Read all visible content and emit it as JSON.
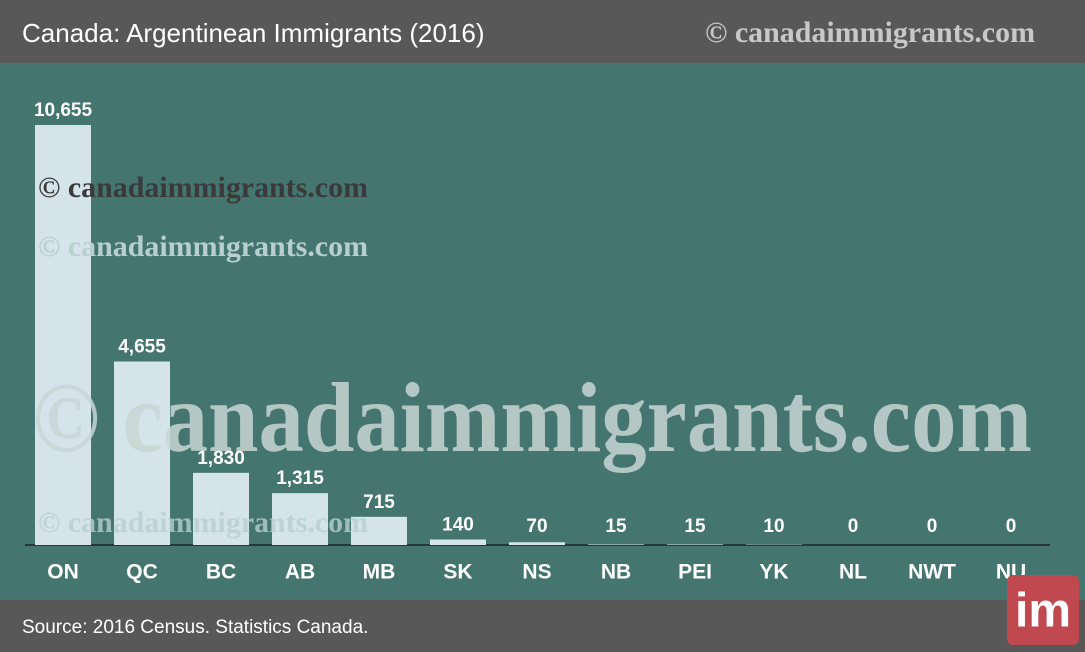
{
  "chart_data": {
    "type": "bar",
    "title": "Canada: Argentinean Immigrants (2016)",
    "watermark": "© canadaimmigrants.com",
    "source": "Source: 2016 Census. Statistics Canada.",
    "logo": "im",
    "categories": [
      "ON",
      "QC",
      "BC",
      "AB",
      "MB",
      "SK",
      "NS",
      "NB",
      "PEI",
      "YK",
      "NL",
      "NWT",
      "NU"
    ],
    "values": [
      10655,
      4655,
      1830,
      1315,
      715,
      140,
      70,
      15,
      15,
      10,
      0,
      0,
      0
    ],
    "value_labels": [
      "10,655",
      "4,655",
      "1,830",
      "1,315",
      "715",
      "140",
      "70",
      "15",
      "15",
      "10",
      "0",
      "0",
      "0"
    ],
    "color": "#d4e4e8"
  }
}
